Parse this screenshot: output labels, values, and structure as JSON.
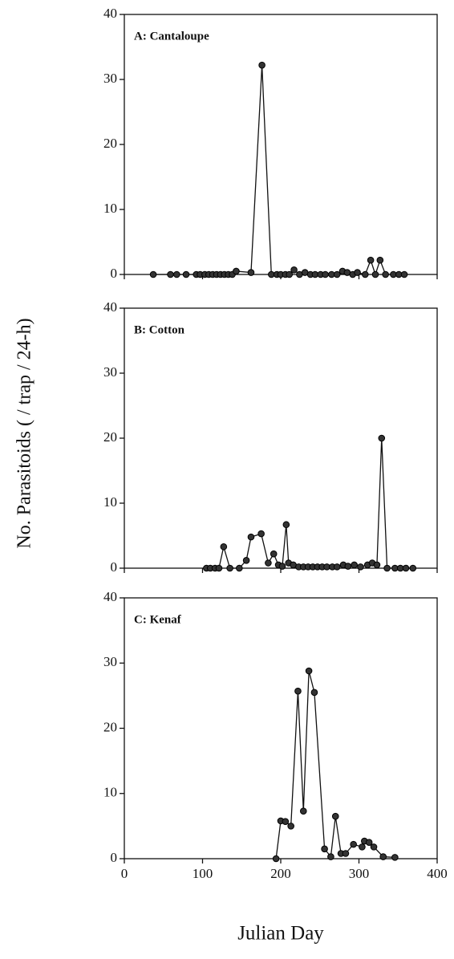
{
  "chart_data": [
    {
      "type": "line",
      "title": "A: Cantaloupe",
      "x": [
        37,
        59,
        67,
        79,
        92,
        97,
        103,
        108,
        113,
        118,
        123,
        128,
        133,
        138,
        143,
        162,
        176,
        188,
        195,
        200,
        206,
        211,
        217,
        224,
        231,
        238,
        244,
        251,
        257,
        265,
        272,
        279,
        285,
        292,
        298,
        308,
        315,
        321,
        327,
        334,
        344,
        351,
        358
      ],
      "values": [
        0,
        0,
        0,
        0,
        0,
        0,
        0,
        0,
        0,
        0,
        0,
        0,
        0,
        0,
        0.5,
        0.3,
        32.2,
        0,
        0,
        0,
        0,
        0,
        0.7,
        0,
        0.3,
        0,
        0,
        0,
        0,
        0,
        0,
        0.5,
        0.3,
        0,
        0.3,
        0,
        2.2,
        0,
        2.2,
        0,
        0,
        0,
        0
      ],
      "xlim": [
        0,
        400
      ],
      "xticks": [
        0,
        100,
        200,
        300,
        400
      ],
      "ylim": [
        0,
        40
      ],
      "yticks": [
        0,
        10,
        20,
        30,
        40
      ]
    },
    {
      "type": "line",
      "title": "B: Cotton",
      "ylabel": "No. Parasitoids ( / trap / 24-h)",
      "x": [
        105,
        110,
        116,
        121,
        127,
        135,
        147,
        156,
        162,
        175,
        184,
        191,
        197,
        202,
        207,
        210,
        216,
        223,
        229,
        235,
        241,
        247,
        253,
        259,
        266,
        272,
        280,
        286,
        294,
        302,
        311,
        317,
        323,
        329,
        336,
        346,
        353,
        360,
        369
      ],
      "values": [
        0,
        0,
        0,
        0,
        3.3,
        0,
        0,
        1.2,
        4.8,
        5.3,
        0.8,
        2.2,
        0.5,
        0.3,
        6.7,
        0.8,
        0.5,
        0.2,
        0.2,
        0.2,
        0.2,
        0.2,
        0.2,
        0.2,
        0.2,
        0.2,
        0.5,
        0.3,
        0.5,
        0.2,
        0.5,
        0.8,
        0.5,
        20,
        0,
        0,
        0,
        0,
        0
      ],
      "xlim": [
        0,
        400
      ],
      "xticks": [
        0,
        100,
        200,
        300,
        400
      ],
      "ylim": [
        0,
        40
      ],
      "yticks": [
        0,
        10,
        20,
        30,
        40
      ]
    },
    {
      "type": "line",
      "title": "C: Kenaf",
      "xlabel": "Julian Day",
      "x": [
        194,
        200,
        206,
        213,
        222,
        229,
        236,
        243,
        256,
        264,
        270,
        277,
        283,
        293,
        304,
        307,
        313,
        319,
        331,
        346
      ],
      "values": [
        0,
        5.8,
        5.7,
        5.0,
        25.7,
        7.3,
        28.8,
        25.5,
        1.5,
        0.3,
        6.5,
        0.8,
        0.8,
        2.2,
        1.8,
        2.7,
        2.5,
        1.8,
        0.3,
        0.2
      ],
      "xlim": [
        0,
        400
      ],
      "xticks": [
        0,
        100,
        200,
        300,
        400
      ],
      "ylim": [
        0,
        40
      ],
      "yticks": [
        0,
        10,
        20,
        30,
        40
      ]
    }
  ]
}
